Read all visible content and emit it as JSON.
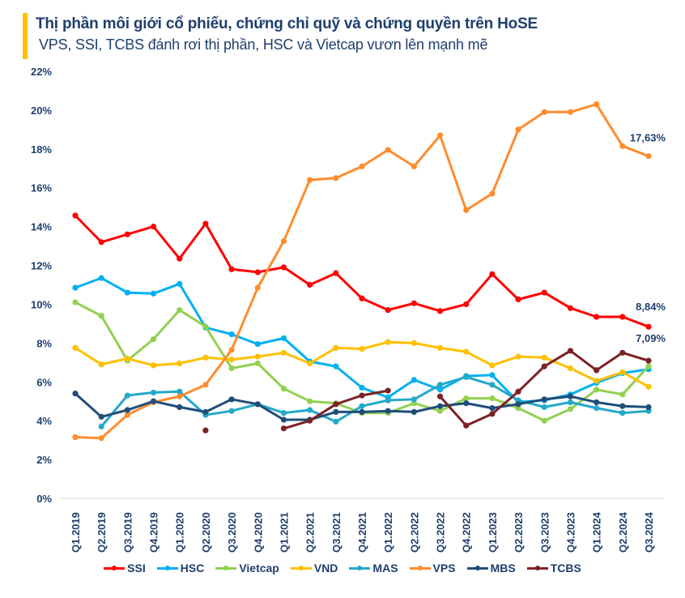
{
  "header": {
    "accent_color": "#ffc000",
    "title": "Thị phần môi giới cổ phiếu, chứng chỉ quỹ và chứng quyền trên HoSE",
    "subtitle": "VPS, SSI, TCBS đánh rơi thị phần, HSC và Vietcap vươn lên mạnh mẽ"
  },
  "chart_data": {
    "type": "line",
    "title": "Thị phần môi giới cổ phiếu, chứng chỉ quỹ và chứng quyền trên HoSE",
    "subtitle": "VPS, SSI, TCBS đánh rơi thị phần, HSC và Vietcap vươn lên mạnh mẽ",
    "xlabel": "",
    "ylabel": "",
    "ylim": [
      0,
      22
    ],
    "yticks": [
      0,
      2,
      4,
      6,
      8,
      10,
      12,
      14,
      16,
      18,
      20,
      22
    ],
    "ytick_labels": [
      "0%",
      "2%",
      "4%",
      "6%",
      "8%",
      "10%",
      "12%",
      "14%",
      "16%",
      "18%",
      "20%",
      "22%"
    ],
    "grid": false,
    "legend_position": "bottom",
    "categories": [
      "Q1.2019",
      "Q2.2019",
      "Q3.2019",
      "Q4.2019",
      "Q1.2020",
      "Q2.2020",
      "Q3.2020",
      "Q4.2020",
      "Q1.2021",
      "Q2.2021",
      "Q3.2021",
      "Q4.2021",
      "Q1.2022",
      "Q2.2022",
      "Q3.2022",
      "Q4.2022",
      "Q1.2023",
      "Q2.2023",
      "Q3.2023",
      "Q4.2023",
      "Q1.2024",
      "Q2.2024",
      "Q3.2024"
    ],
    "series": [
      {
        "name": "SSI",
        "color": "#ff0000",
        "values": [
          14.57,
          13.2,
          13.6,
          14.0,
          12.35,
          14.15,
          11.8,
          11.65,
          11.9,
          11.0,
          11.6,
          10.3,
          9.7,
          10.05,
          9.65,
          10.0,
          11.55,
          10.25,
          10.6,
          9.8,
          9.35,
          9.35,
          8.84
        ]
      },
      {
        "name": "HSC",
        "color": "#00b0f0",
        "values": [
          10.85,
          11.35,
          10.6,
          10.55,
          11.05,
          8.8,
          8.45,
          7.95,
          8.25,
          7.05,
          6.8,
          5.7,
          5.2,
          6.1,
          5.6,
          6.3,
          6.35,
          4.95,
          5.05,
          5.35,
          5.95,
          6.45,
          6.65
        ]
      },
      {
        "name": "Vietcap",
        "color": "#92d050",
        "values": [
          10.1,
          9.4,
          7.1,
          8.2,
          9.7,
          8.85,
          6.7,
          6.95,
          5.65,
          5.0,
          4.9,
          4.4,
          4.4,
          4.9,
          4.5,
          5.15,
          5.15,
          4.65,
          4.0,
          4.6,
          5.6,
          5.35,
          6.8
        ]
      },
      {
        "name": "VND",
        "color": "#ffc000",
        "values": [
          7.75,
          6.9,
          7.2,
          6.85,
          6.95,
          7.25,
          7.15,
          7.3,
          7.5,
          6.95,
          7.75,
          7.7,
          8.05,
          8.0,
          7.75,
          7.55,
          6.85,
          7.3,
          7.25,
          6.7,
          6.05,
          6.5,
          5.75
        ]
      },
      {
        "name": "MAS",
        "color": "#24a9c9",
        "values": [
          null,
          3.7,
          5.3,
          5.45,
          5.5,
          4.3,
          4.5,
          4.85,
          4.4,
          4.55,
          3.95,
          4.75,
          5.05,
          5.1,
          5.85,
          6.25,
          5.85,
          5.05,
          4.7,
          4.95,
          4.65,
          4.4,
          4.5
        ]
      },
      {
        "name": "VPS",
        "color": "#ff8c2e",
        "values": [
          3.15,
          3.1,
          4.3,
          4.95,
          5.25,
          5.85,
          7.65,
          10.85,
          13.25,
          16.4,
          16.5,
          17.1,
          17.95,
          17.1,
          18.7,
          14.85,
          15.7,
          19.0,
          19.9,
          19.9,
          20.3,
          18.15,
          17.63
        ]
      },
      {
        "name": "MBS",
        "color": "#1f4e79",
        "values": [
          5.4,
          4.2,
          4.55,
          5.0,
          4.7,
          4.45,
          5.1,
          4.85,
          4.05,
          4.05,
          4.45,
          4.45,
          4.5,
          4.45,
          4.75,
          4.9,
          4.65,
          4.85,
          5.1,
          5.25,
          4.95,
          4.75,
          4.7
        ]
      },
      {
        "name": "TCBS",
        "color": "#7b2226",
        "values": [
          null,
          null,
          null,
          null,
          null,
          3.5,
          null,
          null,
          3.6,
          4.0,
          4.85,
          5.3,
          5.55,
          null,
          5.25,
          3.75,
          4.35,
          5.5,
          6.8,
          7.6,
          6.6,
          7.5,
          7.09
        ]
      }
    ],
    "annotations": [
      {
        "series": "VPS",
        "category": "Q3.2024",
        "text": "17,63%"
      },
      {
        "series": "SSI",
        "category": "Q3.2024",
        "text": "8,84%"
      },
      {
        "series": "TCBS",
        "category": "Q3.2024",
        "text": "7,09%"
      }
    ]
  }
}
